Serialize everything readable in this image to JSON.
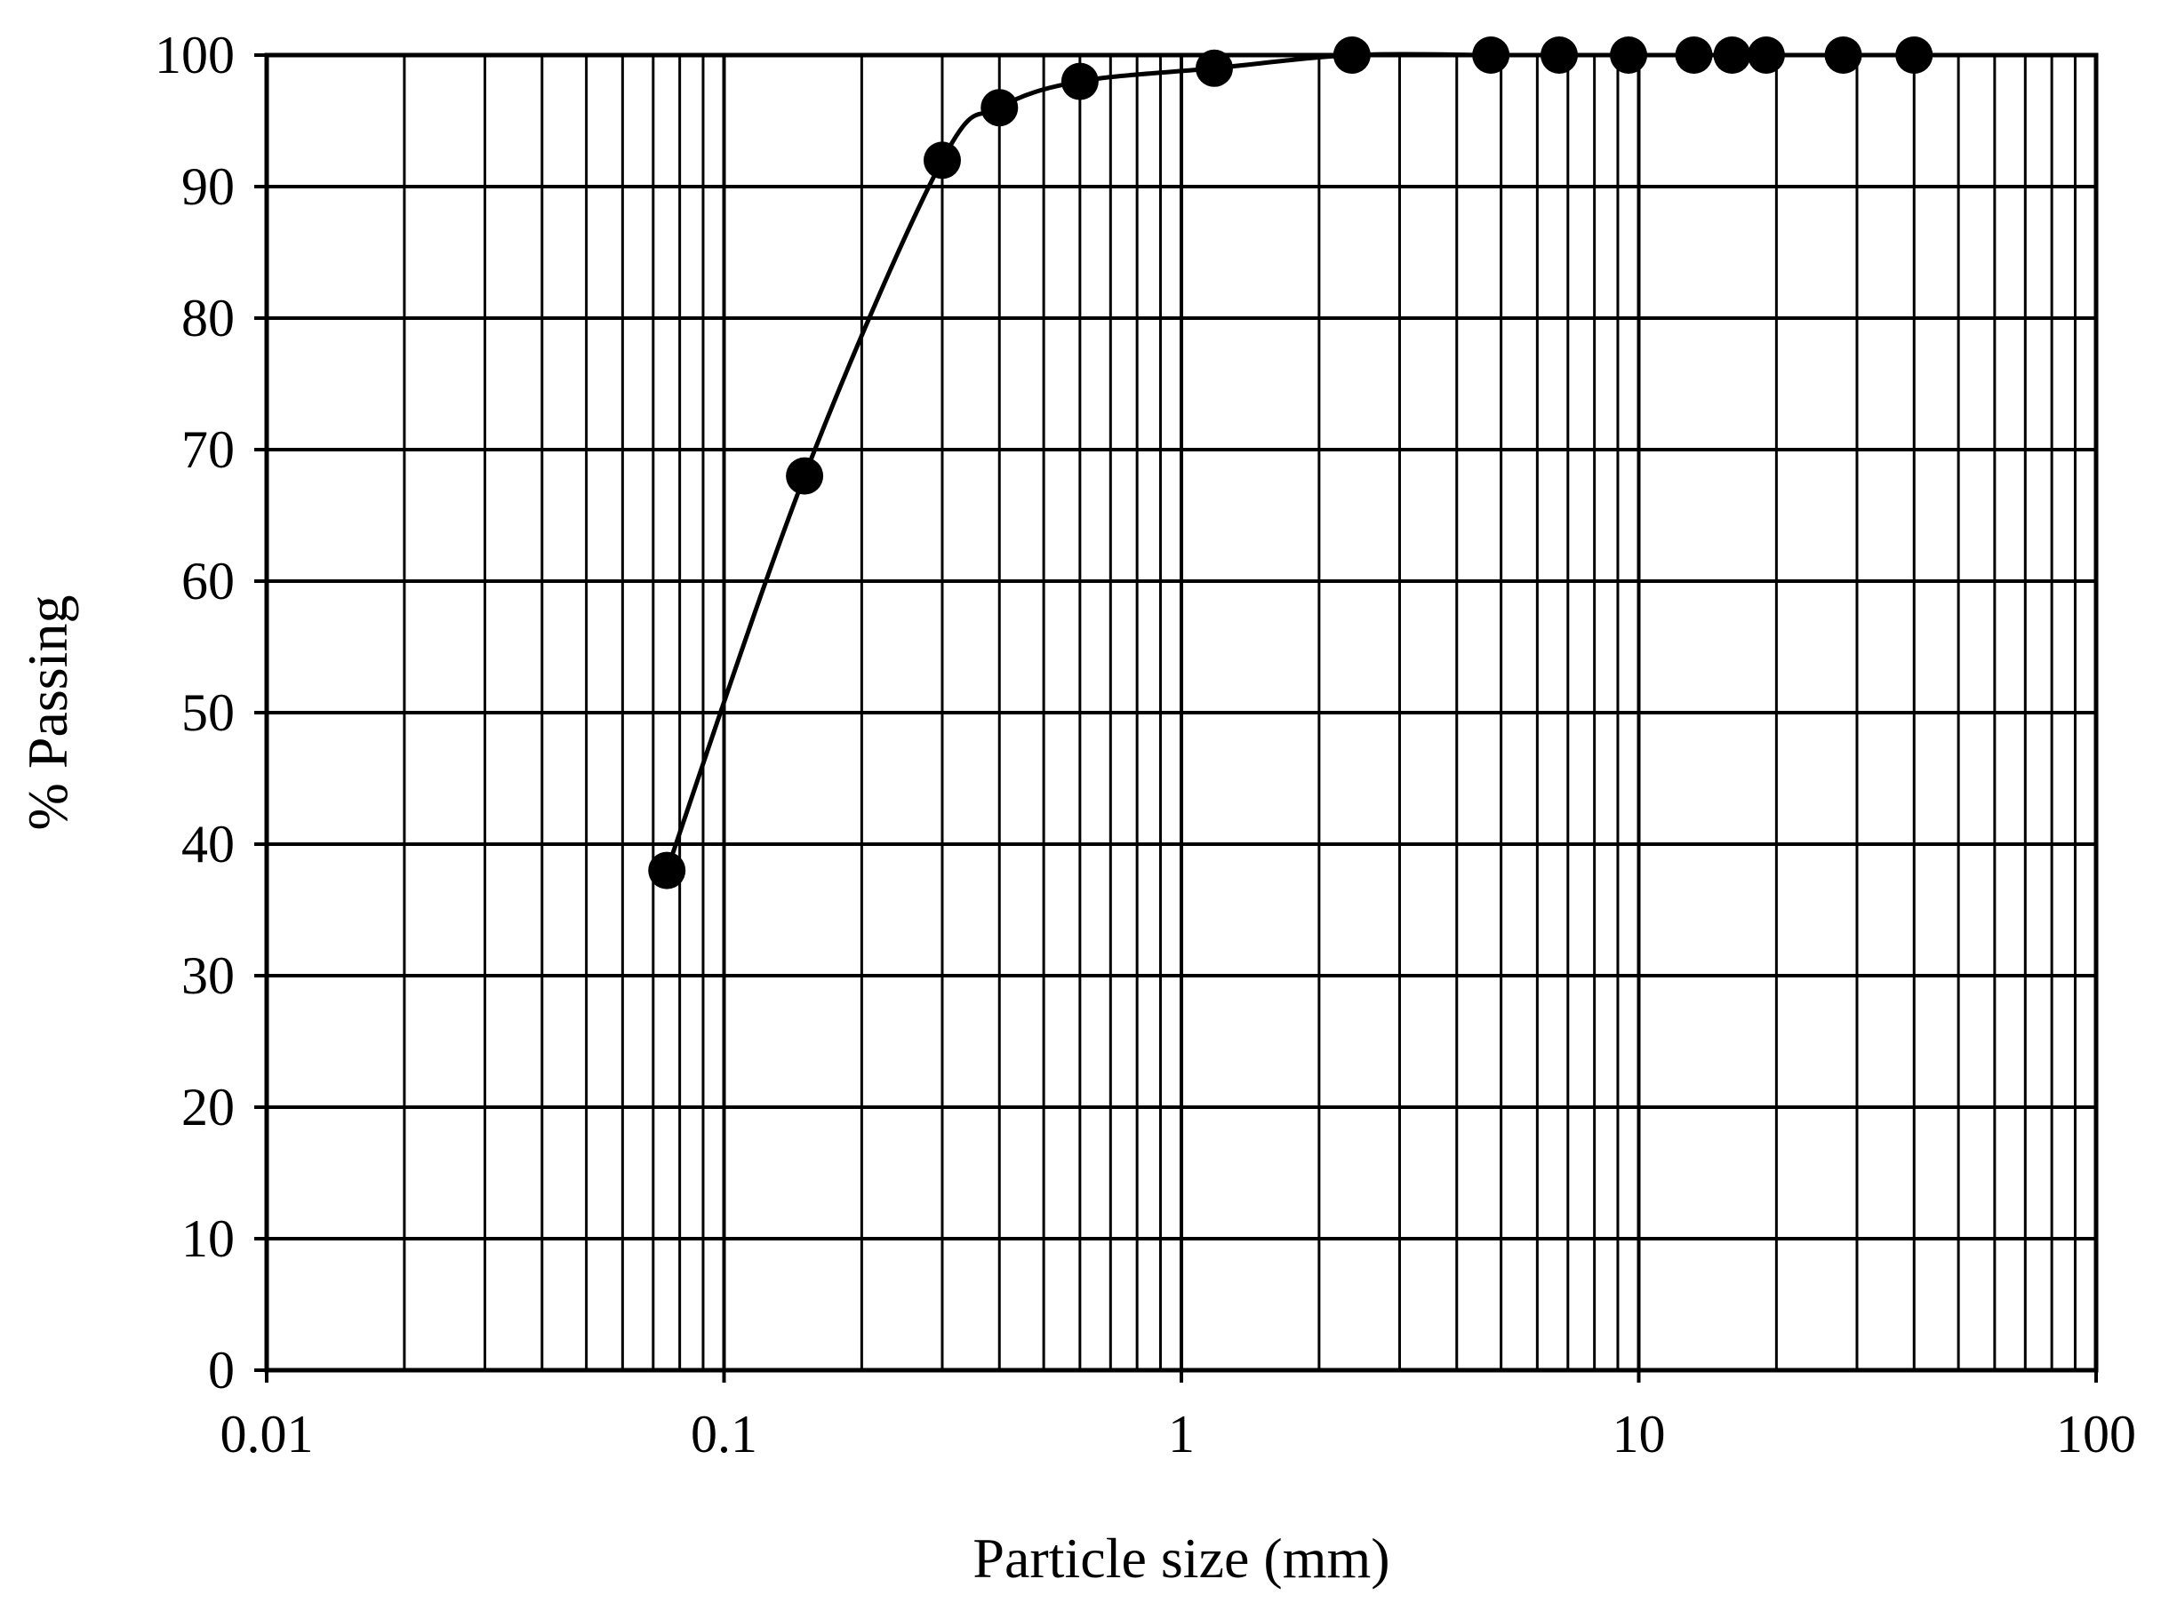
{
  "chart_data": {
    "type": "scatter",
    "title": "",
    "xlabel": "Particle size (mm)",
    "ylabel": "% Passing",
    "x_scale": "log",
    "xlim": [
      0.01,
      100
    ],
    "ylim": [
      0,
      100
    ],
    "x_ticks": [
      0.01,
      0.1,
      1,
      10,
      100
    ],
    "x_tick_labels": [
      "0.01",
      "0.1",
      "1",
      "10",
      "100"
    ],
    "y_ticks": [
      0,
      10,
      20,
      30,
      40,
      50,
      60,
      70,
      80,
      90,
      100
    ],
    "y_tick_labels": [
      "0",
      "10",
      "20",
      "30",
      "40",
      "50",
      "60",
      "70",
      "80",
      "90",
      "100"
    ],
    "grid": true,
    "legend": "none",
    "series": [
      {
        "x": [
          0.075,
          0.15,
          0.3,
          0.4,
          0.6,
          1.18,
          2.36,
          4.75,
          6.7,
          9.5,
          13.2,
          16,
          19,
          28,
          40
        ],
        "y": [
          38,
          68,
          92,
          96,
          98,
          99,
          100,
          100,
          100,
          100,
          100,
          100,
          100,
          100,
          100
        ],
        "color": "#000000",
        "marker": "filled-circle",
        "line": "smooth"
      }
    ]
  }
}
